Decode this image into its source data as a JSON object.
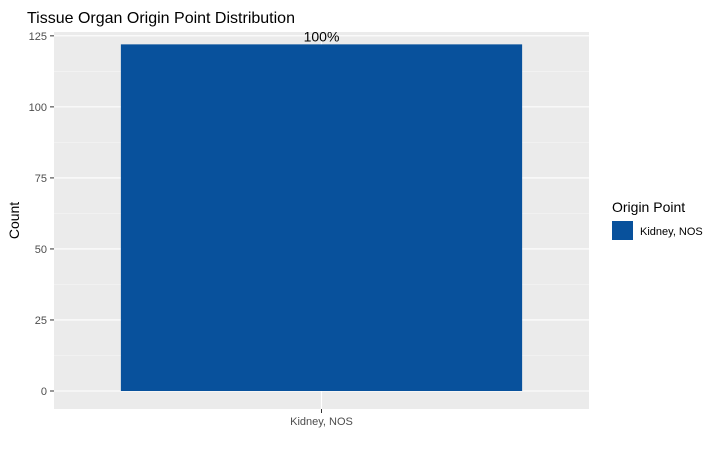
{
  "chart_data": {
    "type": "bar",
    "title": "Tissue Organ Origin Point Distribution",
    "xlabel": "",
    "ylabel": "Count",
    "categories": [
      "Kidney, NOS"
    ],
    "values": [
      122
    ],
    "data_labels": [
      "100%"
    ],
    "ylim": [
      0,
      126
    ],
    "yticks": [
      0,
      25,
      50,
      75,
      100,
      125
    ],
    "ytick_labels": [
      "0",
      "25",
      "50",
      "75",
      "100",
      "125"
    ],
    "grid": true,
    "legend": {
      "title": "Origin Point",
      "placement": "right",
      "entries": [
        "Kidney, NOS"
      ]
    },
    "colors": {
      "bar": "#08519c",
      "panel_background": "#ebebeb",
      "grid_major": "#ffffff",
      "grid_minor": "#f5f5f5"
    }
  }
}
